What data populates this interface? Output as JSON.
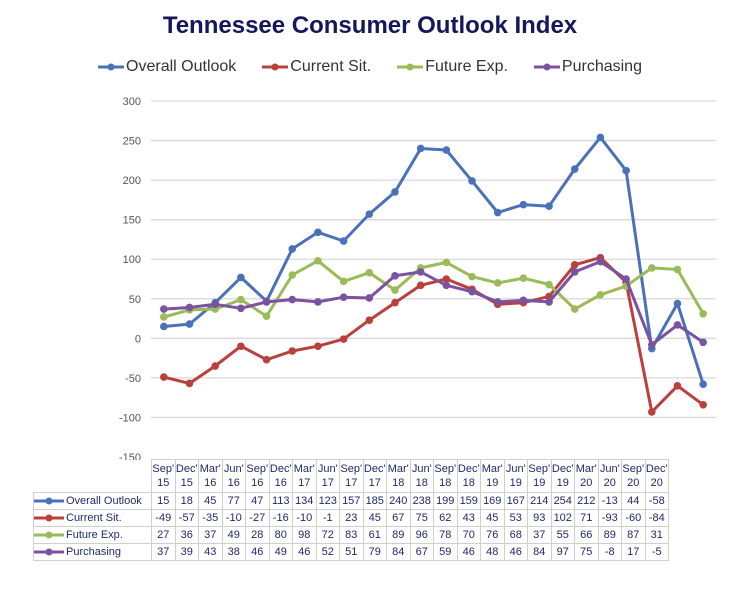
{
  "chart_data": {
    "type": "line",
    "title": "Tennessee Consumer Outlook Index",
    "xlabel": "",
    "ylabel": "",
    "ylim": [
      -150,
      300
    ],
    "yticks": [
      -150,
      -100,
      -50,
      0,
      50,
      100,
      150,
      200,
      250,
      300
    ],
    "grid": true,
    "legend_position": "top",
    "categories": [
      [
        "Sep'",
        "15"
      ],
      [
        "Dec'",
        "15"
      ],
      [
        "Mar'",
        "16"
      ],
      [
        "Jun'",
        "16"
      ],
      [
        "Sep'",
        "16"
      ],
      [
        "Dec'",
        "16"
      ],
      [
        "Mar'",
        "17"
      ],
      [
        "Jun'",
        "17"
      ],
      [
        "Sep'",
        "17"
      ],
      [
        "Dec'",
        "17"
      ],
      [
        "Mar'",
        "18"
      ],
      [
        "Jun'",
        "18"
      ],
      [
        "Sep'",
        "18"
      ],
      [
        "Dec'",
        "18"
      ],
      [
        "Mar'",
        "19"
      ],
      [
        "Jun'",
        "19"
      ],
      [
        "Sep'",
        "19"
      ],
      [
        "Dec'",
        "19"
      ],
      [
        "Mar'",
        "20"
      ],
      [
        "Jun'",
        "20"
      ],
      [
        "Sep'",
        "20"
      ],
      [
        "Dec'",
        "20"
      ]
    ],
    "series": [
      {
        "name": "Overall Outlook",
        "color": "#4a72b8",
        "values": [
          15,
          18,
          45,
          77,
          47,
          113,
          134,
          123,
          157,
          185,
          240,
          238,
          199,
          159,
          169,
          167,
          214,
          254,
          212,
          -13,
          44,
          -58
        ]
      },
      {
        "name": "Current Sit.",
        "color": "#b9403b",
        "values": [
          -49,
          -57,
          -35,
          -10,
          -27,
          -16,
          -10,
          -1,
          23,
          45,
          67,
          75,
          62,
          43,
          45,
          53,
          93,
          102,
          71,
          -93,
          -60,
          -84
        ]
      },
      {
        "name": "Future Exp.",
        "color": "#9bbb59",
        "values": [
          27,
          36,
          37,
          49,
          28,
          80,
          98,
          72,
          83,
          61,
          89,
          96,
          78,
          70,
          76,
          68,
          37,
          55,
          66,
          89,
          87,
          31
        ]
      },
      {
        "name": "Purchasing",
        "color": "#7a52a0",
        "values": [
          37,
          39,
          43,
          38,
          46,
          49,
          46,
          52,
          51,
          79,
          84,
          67,
          59,
          46,
          48,
          46,
          84,
          97,
          75,
          -8,
          17,
          -5
        ]
      }
    ]
  }
}
